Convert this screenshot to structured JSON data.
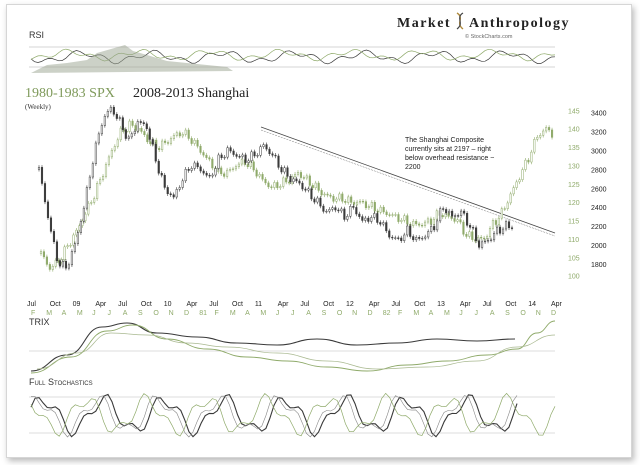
{
  "brand": {
    "name_part1": "Market",
    "name_part2": "Anthropology",
    "credit": "© StockCharts.com"
  },
  "title": {
    "series1": "1980-1983 SPX",
    "series2": "2008-2013 Shanghai",
    "period": "(Weekly)"
  },
  "annotation": {
    "lines": [
      "The Shanghai Composite",
      "currently sits at 2197 – right",
      "below overhead resistance ~",
      "2200"
    ]
  },
  "panels": {
    "rsi_label": "RSI",
    "trix_label": "TRIX",
    "stoch_label": "Full Stochastics"
  },
  "colors": {
    "spx": "#8faa6a",
    "shanghai": "#3a3a3a",
    "title_green": "#7f9a5b",
    "brand_text": "#222222",
    "brand_accent": "#b08a3c",
    "trendline": "#555555"
  },
  "chart_data": {
    "type": "line",
    "title": "1980-1983 SPX   2008-2013 Shanghai",
    "subtitle": "(Weekly)",
    "y_left": {
      "label": "",
      "ticks": [
        100,
        105,
        110,
        115,
        120,
        125,
        130,
        135,
        140,
        145
      ],
      "ylim": [
        98,
        147
      ]
    },
    "y_right": {
      "label": "",
      "ticks": [
        1800,
        2000,
        2200,
        2400,
        2600,
        2800,
        3000,
        3200,
        3400
      ],
      "ylim": [
        1600,
        3500
      ]
    },
    "x_top_ticks": [
      "Jul",
      "Oct",
      "09",
      "Apr",
      "Jul",
      "Oct",
      "10",
      "Apr",
      "Jul",
      "Oct",
      "11",
      "Apr",
      "Jul",
      "Oct",
      "12",
      "Apr",
      "Jul",
      "Oct",
      "13",
      "Apr",
      "Jul",
      "Oct",
      "14",
      "Apr"
    ],
    "x_bottom_ticks": [
      "F",
      "M",
      "A",
      "M",
      "J",
      "J",
      "A",
      "S",
      "O",
      "N",
      "D",
      "81",
      "F",
      "M",
      "A",
      "M",
      "J",
      "J",
      "A",
      "S",
      "O",
      "N",
      "D",
      "82",
      "F",
      "M",
      "A",
      "M",
      "J",
      "J",
      "A",
      "S",
      "O",
      "N",
      "D"
    ],
    "series": [
      {
        "name": "1980-1983 SPX",
        "axis": "left",
        "values": [
          106,
          102,
          104,
          108,
          112,
          117,
          122,
          128,
          134,
          139,
          141,
          140,
          137,
          135,
          136,
          138,
          139,
          137,
          134,
          131,
          128,
          128,
          130,
          131,
          129,
          126,
          124,
          125,
          126,
          128,
          126,
          124,
          122,
          121,
          121,
          120,
          120,
          119,
          118,
          117,
          116,
          115,
          114,
          114,
          115,
          117,
          116,
          115,
          111,
          110,
          110,
          114,
          117,
          122,
          127,
          132,
          138,
          140,
          138
        ]
      },
      {
        "name": "2008-2013 Shanghai",
        "axis": "right",
        "values": [
          2800,
          2300,
          1850,
          1750,
          2000,
          2400,
          2900,
          3300,
          3450,
          3300,
          3100,
          3300,
          3250,
          2900,
          2600,
          2500,
          2700,
          2850,
          2800,
          2700,
          2900,
          3000,
          2950,
          2900,
          2950,
          3050,
          2950,
          2800,
          2700,
          2650,
          2550,
          2450,
          2350,
          2400,
          2300,
          2400,
          2250,
          2300,
          2250,
          2100,
          2050,
          2150,
          2050,
          2100,
          2200,
          2400,
          2300,
          2350,
          2200,
          2000,
          2050,
          2150,
          2200,
          2197
        ]
      }
    ],
    "annotation_text": "The Shanghai Composite currently sits at 2197 – right below overhead resistance ~ 2200",
    "indicators": [
      "RSI",
      "TRIX",
      "Full Stochastics"
    ],
    "grid": false,
    "legend": "top-left"
  }
}
